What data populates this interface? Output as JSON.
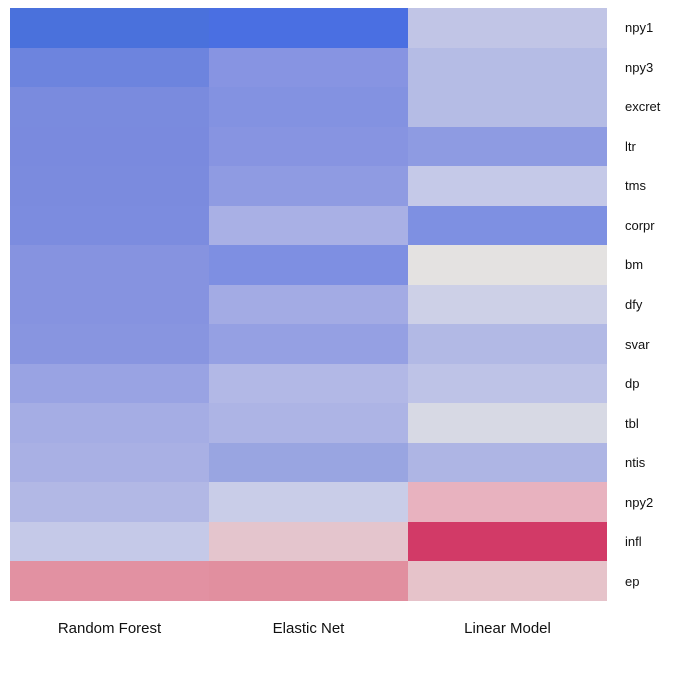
{
  "chart_data": {
    "type": "heatmap",
    "title": "",
    "xlabel": "",
    "ylabel": "",
    "legend": "none",
    "grid": "off",
    "columns": [
      "Random Forest",
      "Elastic Net",
      "Linear Model"
    ],
    "rows": [
      "npy1",
      "npy3",
      "excret",
      "ltr",
      "tms",
      "corpr",
      "bm",
      "dfy",
      "svar",
      "dp",
      "tbl",
      "ntis",
      "npy2",
      "infl",
      "ep"
    ],
    "colorscale_note": "blue = high importance, pink/red = low (no visible legend)",
    "cell_colors": [
      [
        "#4a71dc",
        "#4a6fe2",
        "#c1c5e6"
      ],
      [
        "#6d84de",
        "#8794e2",
        "#b5bce5"
      ],
      [
        "#7a8bde",
        "#8392e1",
        "#b5bce5"
      ],
      [
        "#7a8ade",
        "#8794e1",
        "#8e9be2"
      ],
      [
        "#7b8bde",
        "#8f9be2",
        "#c5c9e8"
      ],
      [
        "#7c8cdf",
        "#a9b0e5",
        "#7e90e2"
      ],
      [
        "#8693e0",
        "#7e8fe2",
        "#e4e2e1"
      ],
      [
        "#8693e0",
        "#a3abe4",
        "#cdd0e7"
      ],
      [
        "#8895e0",
        "#95a0e3",
        "#b2b9e5"
      ],
      [
        "#99a3e3",
        "#b2b8e6",
        "#bec3e7"
      ],
      [
        "#a5ade4",
        "#adb4e5",
        "#d7d9e4"
      ],
      [
        "#a9b0e4",
        "#99a5e1",
        "#aeb5e4"
      ],
      [
        "#b2b8e5",
        "#c9cde8",
        "#e8b2bf"
      ],
      [
        "#c5c9e8",
        "#e4c5cd",
        "#d23a67"
      ],
      [
        "#e291a2",
        "#e18f9f",
        "#e6c3ca"
      ]
    ],
    "background_color": "#ffffff",
    "text_color": "#111111"
  }
}
